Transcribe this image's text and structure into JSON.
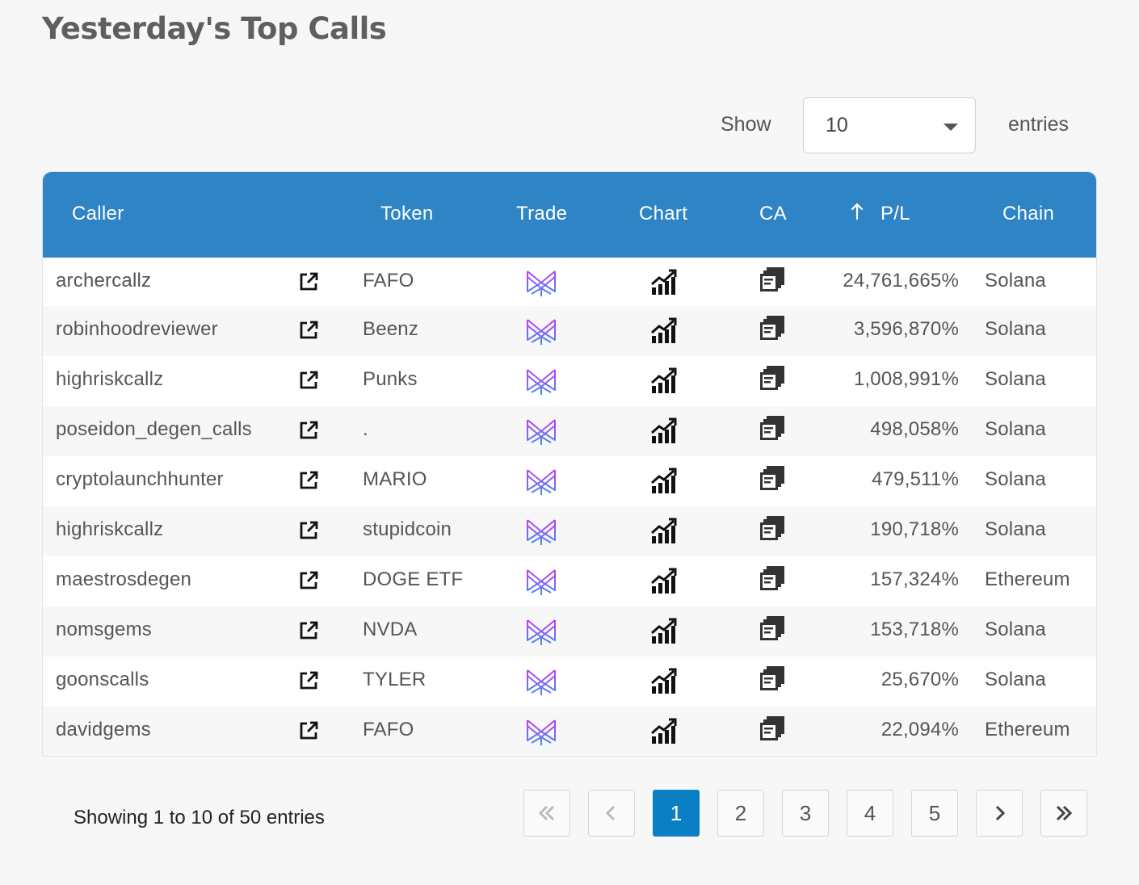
{
  "page": {
    "title": "Yesterday's Top Calls"
  },
  "length_menu": {
    "show_label": "Show",
    "value": "10",
    "entries_label": "entries"
  },
  "table": {
    "headers": {
      "caller": "Caller",
      "token": "Token",
      "trade": "Trade",
      "chart": "Chart",
      "ca": "CA",
      "pl": "P/L",
      "chain": "Chain"
    },
    "sort": {
      "column": "pl",
      "direction": "ascending-arrow"
    },
    "rows": [
      {
        "caller": "archercallz",
        "token": "FAFO",
        "pl": "24,761,665%",
        "chain": "Solana"
      },
      {
        "caller": "robinhoodreviewer",
        "token": "Beenz",
        "pl": "3,596,870%",
        "chain": "Solana"
      },
      {
        "caller": "highriskcallz",
        "token": "Punks",
        "pl": "1,008,991%",
        "chain": "Solana"
      },
      {
        "caller": "poseidon_degen_calls",
        "token": ".",
        "pl": "498,058%",
        "chain": "Solana"
      },
      {
        "caller": "cryptolaunchhunter",
        "token": "MARIO",
        "pl": "479,511%",
        "chain": "Solana"
      },
      {
        "caller": "highriskcallz",
        "token": "stupidcoin",
        "pl": "190,718%",
        "chain": "Solana"
      },
      {
        "caller": "maestrosdegen",
        "token": "DOGE ETF",
        "pl": "157,324%",
        "chain": "Ethereum"
      },
      {
        "caller": "nomsgems",
        "token": "NVDA",
        "pl": "153,718%",
        "chain": "Solana"
      },
      {
        "caller": "goonscalls",
        "token": "TYLER",
        "pl": "25,670%",
        "chain": "Solana"
      },
      {
        "caller": "davidgems",
        "token": "FAFO",
        "pl": "22,094%",
        "chain": "Ethereum"
      }
    ],
    "row_icons": {
      "link": "external-link-icon",
      "trade": "trade-logo-icon",
      "chart": "chart-icon",
      "ca": "copy-icon"
    }
  },
  "info": {
    "text": "Showing 1 to 10 of 50 entries"
  },
  "pagination": {
    "first": "first-page-icon",
    "previous": "previous-page-icon",
    "pages": [
      "1",
      "2",
      "3",
      "4",
      "5"
    ],
    "active": "1",
    "next": "next-page-icon",
    "last": "last-page-icon"
  },
  "colors": {
    "header_bg": "#2e84c4",
    "active_page": "#0a7fc4",
    "background": "#f7f7f7",
    "trade_logo_gradient": [
      "#c23bf5",
      "#3d8ef5"
    ]
  }
}
